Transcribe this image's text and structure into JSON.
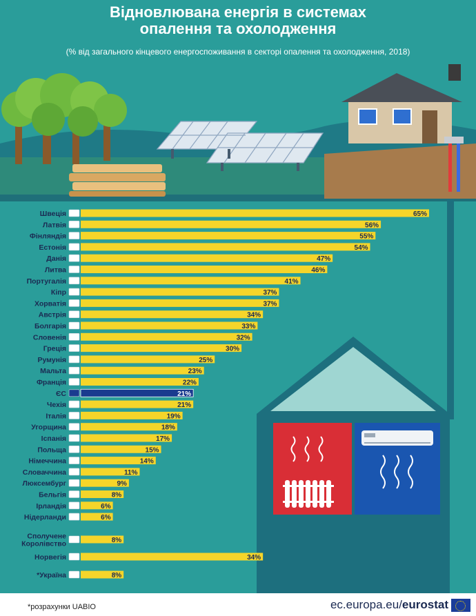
{
  "header": {
    "title_line1": "Відновлювана енергія в системах",
    "title_line2": "опалення та охолодження",
    "subtitle": "(% від загального кінцевого енергоспоживання в секторі опалення та охолодження, 2018)"
  },
  "footer": {
    "note": "*розрахунки UABIO",
    "brand_prefix": "ec.europa.eu/",
    "brand_name": "eurostat"
  },
  "colors": {
    "background": "#2a9d9a",
    "bar": "#f5d52a",
    "bar_eu": "#1a3b8f",
    "label": "#1b2a52",
    "radiator_room": "#d92e36",
    "ac_room": "#1a56b0",
    "roof": "#9fd6d2",
    "wall": "#1d6f7e"
  },
  "chart_data": {
    "type": "bar",
    "orientation": "horizontal",
    "title": "Відновлювана енергія в системах опалення та охолодження",
    "subtitle": "(% від загального кінцевого енергоспоживання в секторі опалення та охолодження, 2018)",
    "categories": [
      "Швеція",
      "Латвія",
      "Фінляндія",
      "Естонія",
      "Данія",
      "Литва",
      "Португалія",
      "Кіпр",
      "Хорватія",
      "Австрія",
      "Болгарія",
      "Словенія",
      "Греція",
      "Румунія",
      "Мальта",
      "Франція",
      "ЄС",
      "Чехія",
      "Італія",
      "Угорщина",
      "Іспанія",
      "Польща",
      "Німеччина",
      "Словаччина",
      "Люксембург",
      "Бельгія",
      "Ірландія",
      "Нідерланди",
      "Сполучене Королівство",
      "Норвегія",
      "*Україна"
    ],
    "label_lines": [
      [
        "Швеція"
      ],
      [
        "Латвія"
      ],
      [
        "Фінляндія"
      ],
      [
        "Естонія"
      ],
      [
        "Данія"
      ],
      [
        "Литва"
      ],
      [
        "Португалія"
      ],
      [
        "Кіпр"
      ],
      [
        "Хорватія"
      ],
      [
        "Австрія"
      ],
      [
        "Болгарія"
      ],
      [
        "Словенія"
      ],
      [
        "Греція"
      ],
      [
        "Румунія"
      ],
      [
        "Мальта"
      ],
      [
        "Франція"
      ],
      [
        "ЄС"
      ],
      [
        "Чехія"
      ],
      [
        "Італія"
      ],
      [
        "Угорщина"
      ],
      [
        "Іспанія"
      ],
      [
        "Польща"
      ],
      [
        "Німеччина"
      ],
      [
        "Словаччина"
      ],
      [
        "Люксембург"
      ],
      [
        "Бельгія"
      ],
      [
        "Ірландія"
      ],
      [
        "Нідерланди"
      ],
      [
        "Сполучене",
        "Королівство"
      ],
      [
        "Норвегія"
      ],
      [
        "*Україна"
      ]
    ],
    "values": [
      65,
      56,
      55,
      54,
      47,
      46,
      41,
      37,
      37,
      34,
      33,
      32,
      30,
      25,
      23,
      22,
      21,
      21,
      19,
      18,
      17,
      15,
      14,
      11,
      9,
      8,
      6,
      6,
      8,
      34,
      8
    ],
    "value_labels": [
      "65%",
      "56%",
      "55%",
      "54%",
      "47%",
      "46%",
      "41%",
      "37%",
      "37%",
      "34%",
      "33%",
      "32%",
      "30%",
      "25%",
      "23%",
      "22%",
      "21%",
      "21%",
      "19%",
      "18%",
      "17%",
      "15%",
      "14%",
      "11%",
      "9%",
      "8%",
      "6%",
      "6%",
      "8%",
      "34%",
      "8%"
    ],
    "highlight": "ЄС",
    "unit": "%",
    "xlim": [
      0,
      65
    ],
    "grid": false,
    "legend": "none"
  }
}
